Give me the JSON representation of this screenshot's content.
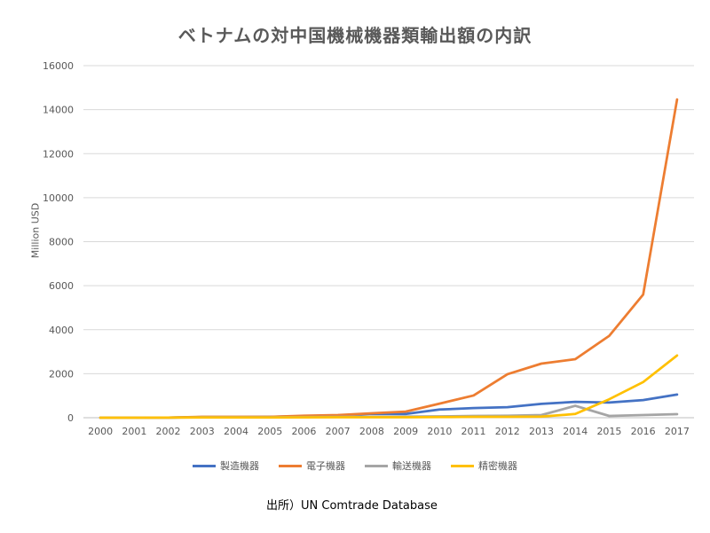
{
  "chart_data": {
    "type": "line",
    "title": "ベトナムの対中国機械機器類輸出額の内訳",
    "ylabel": "Million USD",
    "xlabel": "",
    "ylim": [
      0,
      16000
    ],
    "yticks": [
      0,
      2000,
      4000,
      6000,
      8000,
      10000,
      12000,
      14000,
      16000
    ],
    "categories": [
      "2000",
      "2001",
      "2002",
      "2003",
      "2004",
      "2005",
      "2006",
      "2007",
      "2008",
      "2009",
      "2010",
      "2011",
      "2012",
      "2013",
      "2014",
      "2015",
      "2016",
      "2017"
    ],
    "grid": "horizontal",
    "legend_position": "bottom",
    "series": [
      {
        "name": "製造機器",
        "color": "#4472C4",
        "values": [
          0,
          0,
          5,
          30,
          30,
          40,
          70,
          100,
          180,
          170,
          370,
          440,
          480,
          630,
          720,
          690,
          800,
          1050
        ]
      },
      {
        "name": "電子機器",
        "color": "#ED7D31",
        "values": [
          0,
          0,
          5,
          40,
          40,
          40,
          90,
          120,
          200,
          280,
          640,
          1010,
          1980,
          2460,
          2660,
          3720,
          5600,
          14460
        ]
      },
      {
        "name": "輸送機器",
        "color": "#A5A5A5",
        "values": [
          0,
          0,
          5,
          20,
          20,
          20,
          30,
          40,
          50,
          50,
          60,
          80,
          90,
          120,
          540,
          80,
          120,
          160
        ]
      },
      {
        "name": "精密機器",
        "color": "#FFC000",
        "values": [
          0,
          0,
          5,
          10,
          10,
          10,
          15,
          20,
          20,
          20,
          30,
          40,
          40,
          50,
          170,
          840,
          1620,
          2830
        ]
      }
    ]
  },
  "source_note": "出所）UN Comtrade Database"
}
